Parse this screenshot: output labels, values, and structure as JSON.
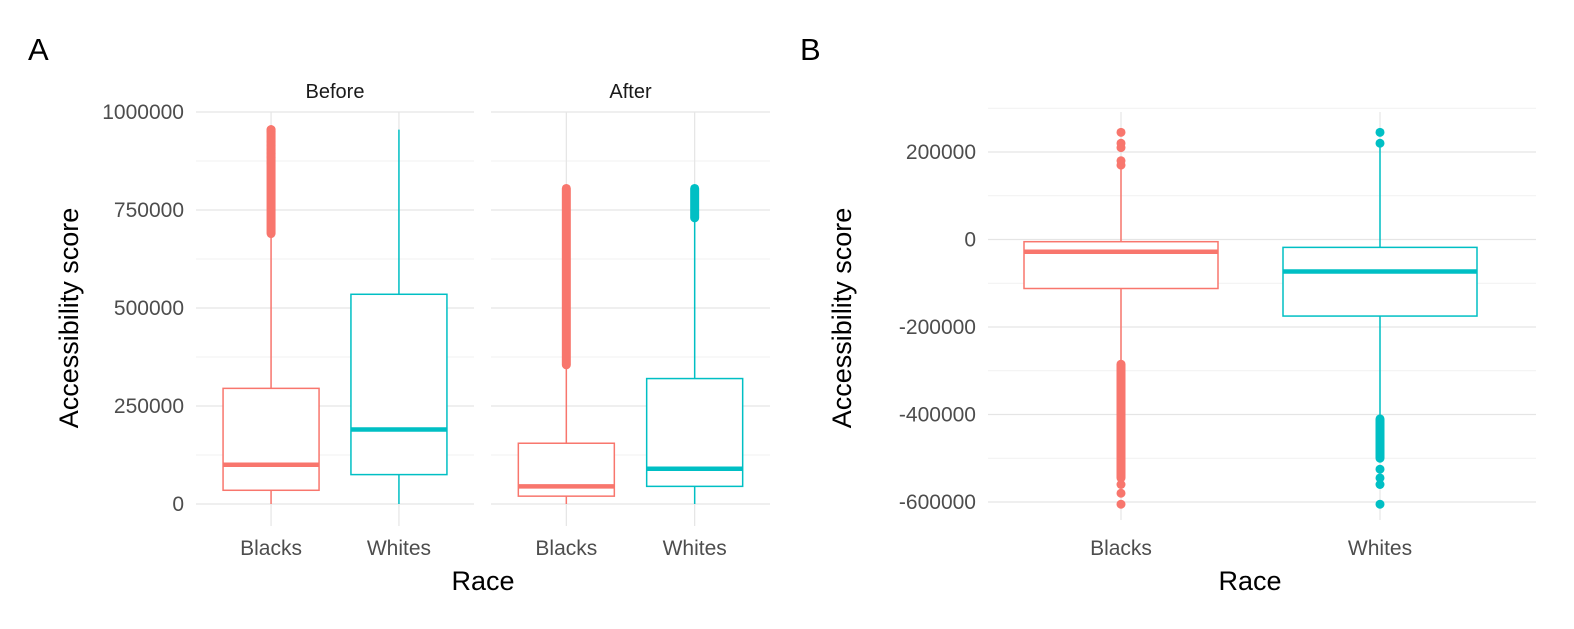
{
  "panel_labels": [
    "A",
    "B"
  ],
  "colors": {
    "blacks": "#F8766D",
    "whites": "#00BFC4"
  },
  "chart_data": [
    {
      "type": "box",
      "panel": "A",
      "facets": [
        "Before",
        "After"
      ],
      "xlabel": "Race",
      "ylabel": "Accessibility score",
      "categories": [
        "Blacks",
        "Whites"
      ],
      "ylim": [
        0,
        1000000
      ],
      "yticks": [
        0,
        250000,
        500000,
        750000,
        1000000
      ],
      "ytick_labels": [
        "0",
        "250000",
        "500000",
        "750000",
        "1000000"
      ],
      "grid": true,
      "boxes": [
        {
          "facet": "Before",
          "category": "Blacks",
          "min": 0,
          "q1": 35000,
          "median": 100000,
          "q3": 295000,
          "whisker_high": 685000,
          "outliers_range": [
            690000,
            955000
          ],
          "outliers": [
            955000,
            950000,
            925000,
            915000,
            905000,
            895000,
            885000,
            870000
          ]
        },
        {
          "facet": "Before",
          "category": "Whites",
          "min": 0,
          "q1": 75000,
          "median": 190000,
          "q3": 535000,
          "whisker_high": 955000,
          "outliers_range": null,
          "outliers": []
        },
        {
          "facet": "After",
          "category": "Blacks",
          "min": 0,
          "q1": 20000,
          "median": 45000,
          "q3": 155000,
          "whisker_high": 355000,
          "outliers_range": [
            355000,
            805000
          ],
          "outliers": []
        },
        {
          "facet": "After",
          "category": "Whites",
          "min": 0,
          "q1": 45000,
          "median": 90000,
          "q3": 320000,
          "whisker_high": 725000,
          "outliers_range": [
            730000,
            805000
          ],
          "outliers": []
        }
      ]
    },
    {
      "type": "box",
      "panel": "B",
      "xlabel": "Race",
      "ylabel": "Accessibility score",
      "categories": [
        "Blacks",
        "Whites"
      ],
      "ylim": [
        -620000,
        265000
      ],
      "yticks": [
        -600000,
        -400000,
        -200000,
        0,
        200000
      ],
      "ytick_labels": [
        "-600000",
        "-400000",
        "-200000",
        "0",
        "200000"
      ],
      "grid": true,
      "boxes": [
        {
          "category": "Blacks",
          "min": -280000,
          "q1": -112000,
          "median": -28000,
          "q3": -5000,
          "whisker_high": 160000,
          "outliers_range": [
            -545000,
            -285000
          ],
          "outliers": [
            245000,
            220000,
            210000,
            180000,
            170000,
            -560000,
            -580000,
            -605000
          ]
        },
        {
          "category": "Whites",
          "min": -405000,
          "q1": -175000,
          "median": -73000,
          "q3": -18000,
          "whisker_high": 215000,
          "outliers_range": [
            -500000,
            -410000
          ],
          "outliers": [
            245000,
            220000,
            -525000,
            -545000,
            -560000,
            -605000
          ]
        }
      ]
    }
  ]
}
